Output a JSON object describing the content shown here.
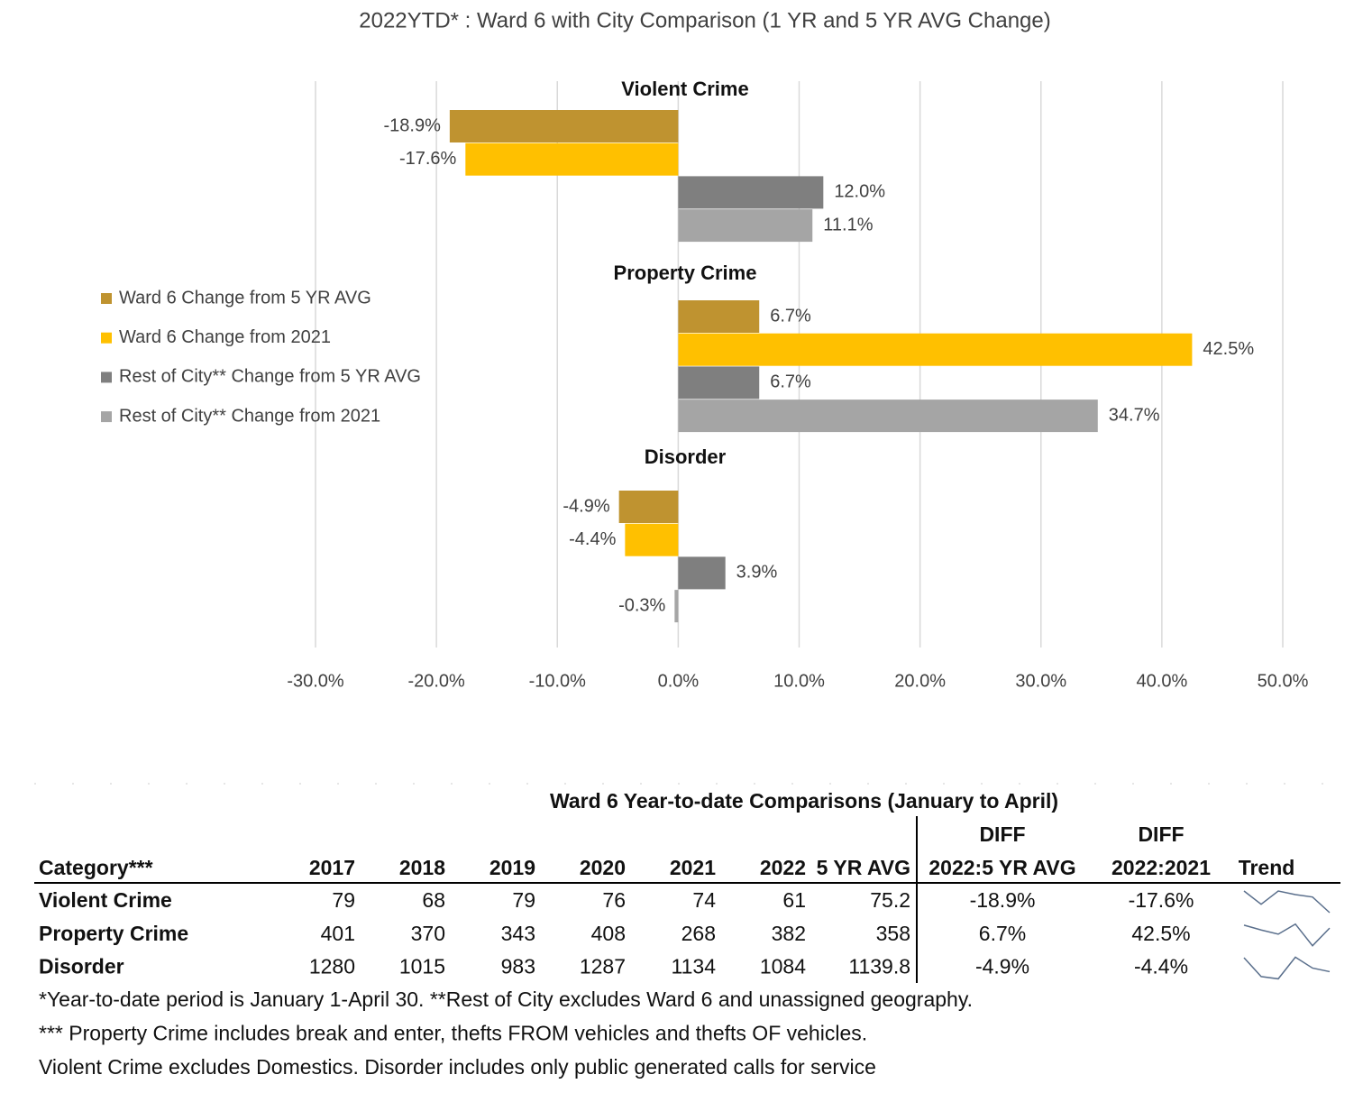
{
  "chart_data": {
    "type": "bar",
    "orientation": "horizontal",
    "title": "2022YTD* : Ward 6 with City Comparison (1 YR and 5 YR AVG Change)",
    "categories": [
      "Violent Crime",
      "Property Crime",
      "Disorder"
    ],
    "series": [
      {
        "name": "Ward 6 Change from 5 YR AVG",
        "color": "#BF9330",
        "values": [
          -18.9,
          6.7,
          -4.9
        ],
        "value_labels": [
          "-18.9%",
          "6.7%",
          "-4.9%"
        ]
      },
      {
        "name": "Ward 6 Change from 2021",
        "color": "#FFC000",
        "values": [
          -17.6,
          42.5,
          -4.4
        ],
        "value_labels": [
          "-17.6%",
          "42.5%",
          "-4.4%"
        ]
      },
      {
        "name": "Rest of City** Change from 5 YR AVG",
        "color": "#7F7F7F",
        "values": [
          12.0,
          6.7,
          3.9
        ],
        "value_labels": [
          "12.0%",
          "6.7%",
          "3.9%"
        ]
      },
      {
        "name": "Rest of City** Change from 2021",
        "color": "#A5A5A5",
        "values": [
          11.1,
          34.7,
          -0.3
        ],
        "value_labels": [
          "11.1%",
          "34.7%",
          "-0.3%"
        ]
      }
    ],
    "xlim": [
      -30,
      50
    ],
    "xticks": [
      {
        "value": -30,
        "label": "-30.0%"
      },
      {
        "value": -20,
        "label": "-20.0%"
      },
      {
        "value": -10,
        "label": "-10.0%"
      },
      {
        "value": 0,
        "label": "0.0%"
      },
      {
        "value": 10,
        "label": "10.0%"
      },
      {
        "value": 20,
        "label": "20.0%"
      },
      {
        "value": 30,
        "label": "30.0%"
      },
      {
        "value": 40,
        "label": "40.0%"
      },
      {
        "value": 50,
        "label": "50.0%"
      }
    ],
    "grid": true,
    "legend": "left"
  },
  "table": {
    "title": "Ward 6 Year-to-date Comparisons (January to April)",
    "header_top": [
      "DIFF",
      "DIFF"
    ],
    "header": [
      "Category***",
      "2017",
      "2018",
      "2019",
      "2020",
      "2021",
      "2022",
      "5 YR AVG",
      "2022:5 YR AVG",
      "2022:2021",
      "Trend"
    ],
    "rows": [
      [
        "Violent Crime",
        79,
        68,
        79,
        76,
        74,
        61,
        75.2,
        "-18.9%",
        "-17.6%"
      ],
      [
        "Property Crime",
        401,
        370,
        343,
        408,
        268,
        382,
        358,
        "6.7%",
        "42.5%"
      ],
      [
        "Disorder",
        1280,
        1015,
        983,
        1287,
        1134,
        1084,
        1139.8,
        "-4.9%",
        "-4.4%"
      ]
    ],
    "footnotes": [
      "*Year-to-date period is January 1-April 30.  **Rest of City excludes Ward 6 and unassigned geography.",
      "*** Property Crime includes break and enter, thefts FROM vehicles and thefts OF vehicles.",
      "Violent Crime excludes Domestics.  Disorder includes only public generated calls for service"
    ]
  }
}
